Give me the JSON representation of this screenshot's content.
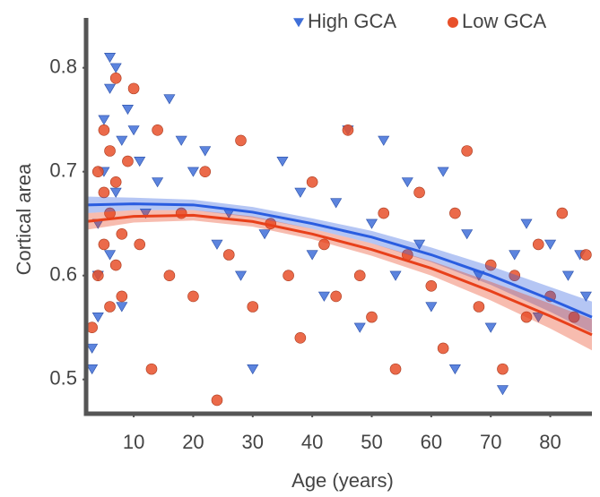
{
  "chart_data": {
    "type": "scatter",
    "x_label": "Age (years)",
    "y_label": "Cortical area",
    "xlim": [
      2,
      87
    ],
    "ylim": [
      0.467,
      0.848
    ],
    "xticks": [
      10,
      20,
      30,
      40,
      50,
      60,
      70,
      80
    ],
    "yticks": [
      0.5,
      0.6,
      0.7,
      0.8
    ],
    "legend": "top-right",
    "series": [
      {
        "name": "High GCA",
        "color": "#3f6fd8",
        "marker": "triangle",
        "x": [
          3,
          3,
          4,
          4,
          4,
          5,
          5,
          6,
          6,
          6,
          7,
          7,
          8,
          8,
          9,
          10,
          11,
          12,
          14,
          16,
          18,
          20,
          22,
          24,
          26,
          28,
          30,
          32,
          35,
          38,
          40,
          42,
          44,
          46,
          48,
          50,
          52,
          54,
          56,
          58,
          60,
          62,
          64,
          66,
          68,
          70,
          72,
          74,
          76,
          78,
          80,
          83,
          85,
          86
        ],
        "values": [
          0.51,
          0.53,
          0.56,
          0.6,
          0.65,
          0.7,
          0.75,
          0.81,
          0.78,
          0.62,
          0.8,
          0.68,
          0.73,
          0.57,
          0.76,
          0.74,
          0.71,
          0.66,
          0.69,
          0.77,
          0.73,
          0.7,
          0.72,
          0.63,
          0.66,
          0.6,
          0.51,
          0.64,
          0.71,
          0.68,
          0.62,
          0.58,
          0.67,
          0.74,
          0.55,
          0.65,
          0.73,
          0.6,
          0.69,
          0.63,
          0.57,
          0.7,
          0.51,
          0.64,
          0.6,
          0.55,
          0.49,
          0.62,
          0.65,
          0.56,
          0.63,
          0.6,
          0.62,
          0.58
        ]
      },
      {
        "name": "Low GCA",
        "color": "#e8502a",
        "marker": "circle",
        "x": [
          3,
          4,
          4,
          5,
          5,
          5,
          6,
          6,
          6,
          7,
          7,
          7,
          8,
          8,
          9,
          10,
          11,
          13,
          14,
          16,
          18,
          20,
          22,
          24,
          26,
          28,
          30,
          33,
          36,
          38,
          40,
          42,
          44,
          46,
          48,
          50,
          52,
          54,
          56,
          58,
          60,
          62,
          64,
          66,
          68,
          70,
          72,
          74,
          76,
          78,
          80,
          82,
          84,
          86
        ],
        "values": [
          0.55,
          0.6,
          0.7,
          0.63,
          0.68,
          0.74,
          0.57,
          0.66,
          0.72,
          0.79,
          0.61,
          0.69,
          0.64,
          0.58,
          0.71,
          0.78,
          0.63,
          0.51,
          0.74,
          0.6,
          0.66,
          0.58,
          0.7,
          0.48,
          0.62,
          0.73,
          0.57,
          0.65,
          0.6,
          0.54,
          0.69,
          0.63,
          0.58,
          0.74,
          0.6,
          0.56,
          0.66,
          0.51,
          0.62,
          0.68,
          0.59,
          0.53,
          0.66,
          0.72,
          0.57,
          0.61,
          0.51,
          0.6,
          0.56,
          0.63,
          0.58,
          0.66,
          0.56,
          0.62
        ]
      }
    ],
    "fits": [
      {
        "color": "#2a5de0",
        "x": [
          2,
          10,
          20,
          30,
          40,
          50,
          60,
          70,
          80,
          87
        ],
        "values": [
          0.668,
          0.669,
          0.668,
          0.661,
          0.65,
          0.637,
          0.62,
          0.6,
          0.577,
          0.56
        ],
        "lower": [
          0.66,
          0.663,
          0.663,
          0.656,
          0.645,
          0.631,
          0.613,
          0.591,
          0.565,
          0.545
        ],
        "upper": [
          0.676,
          0.675,
          0.673,
          0.666,
          0.655,
          0.643,
          0.627,
          0.609,
          0.589,
          0.575
        ]
      },
      {
        "color": "#e8401a",
        "x": [
          2,
          10,
          20,
          30,
          40,
          50,
          60,
          70,
          80,
          87
        ],
        "values": [
          0.652,
          0.657,
          0.658,
          0.652,
          0.64,
          0.625,
          0.607,
          0.585,
          0.561,
          0.543
        ],
        "lower": [
          0.644,
          0.651,
          0.653,
          0.647,
          0.635,
          0.619,
          0.6,
          0.576,
          0.549,
          0.528
        ],
        "upper": [
          0.66,
          0.663,
          0.663,
          0.657,
          0.645,
          0.631,
          0.614,
          0.594,
          0.573,
          0.558
        ]
      }
    ]
  }
}
